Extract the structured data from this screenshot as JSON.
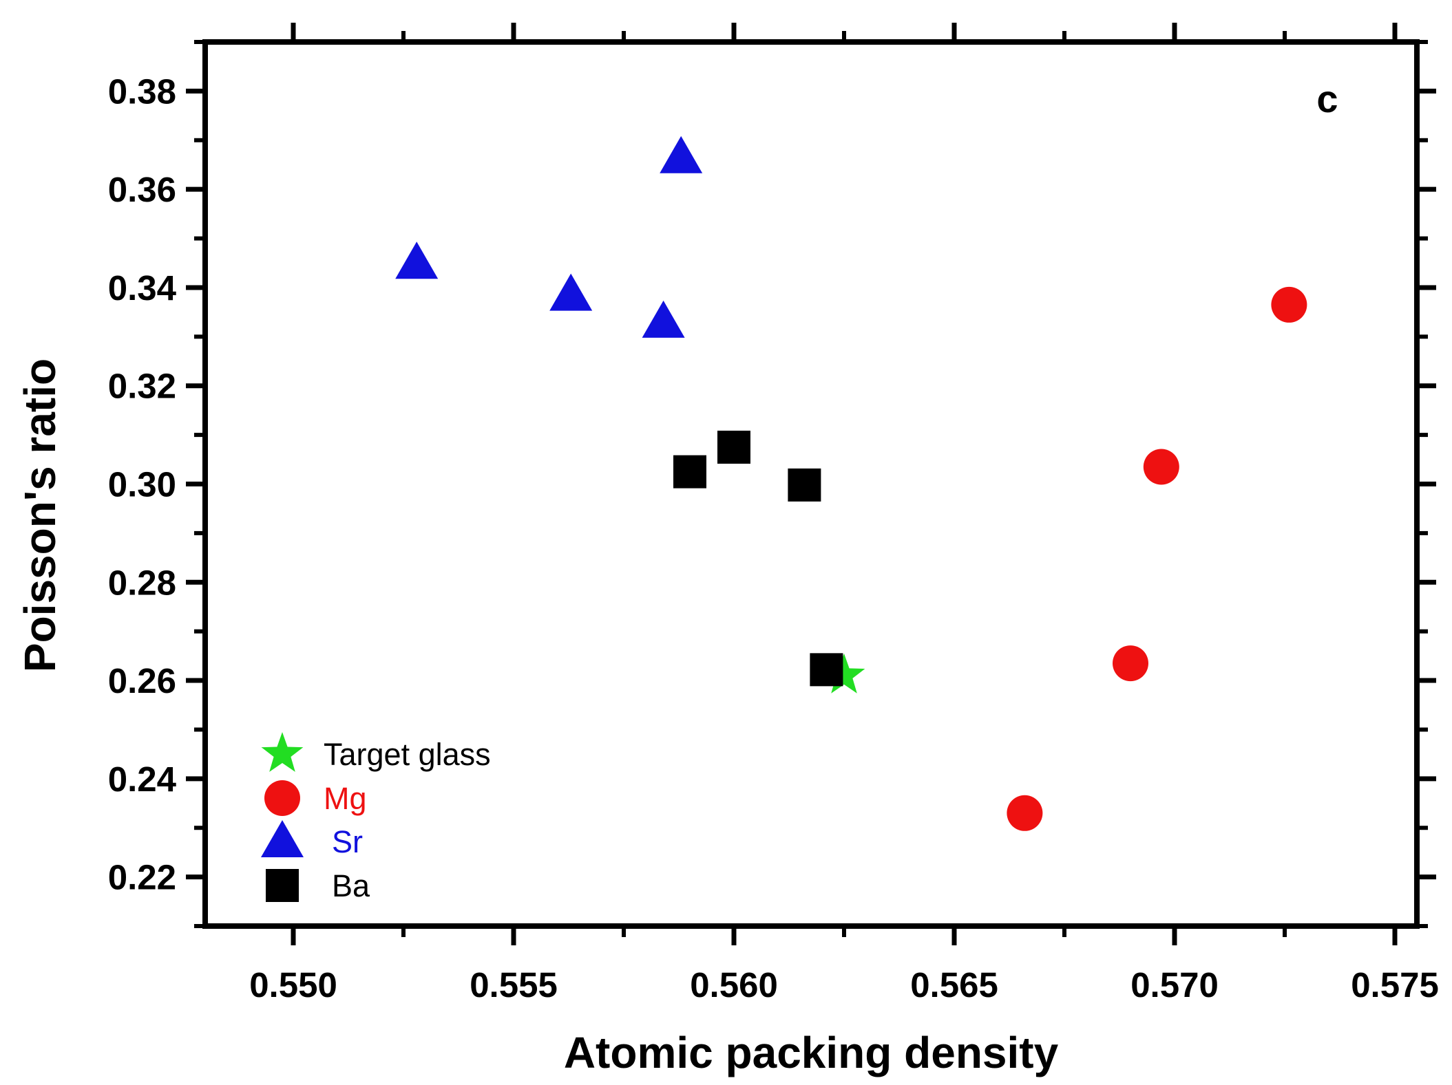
{
  "chart_data": {
    "type": "scatter",
    "title": "",
    "panel_label": "c",
    "xlabel": "Atomic packing density",
    "ylabel": "Poisson's ratio",
    "xlim": [
      0.548,
      0.5755
    ],
    "ylim": [
      0.21,
      0.39
    ],
    "x_ticks": [
      "0.550",
      "0.555",
      "0.560",
      "0.565",
      "0.570",
      "0.575"
    ],
    "y_ticks": [
      "0.22",
      "0.24",
      "0.26",
      "0.28",
      "0.30",
      "0.32",
      "0.34",
      "0.36",
      "0.38"
    ],
    "grid": false,
    "legend_position": "bottom-left",
    "series": [
      {
        "name": "Target glass",
        "marker": "star",
        "color": "#22dd22",
        "points": [
          {
            "x": 0.5625,
            "y": 0.261
          }
        ]
      },
      {
        "name": "Mg",
        "marker": "circle",
        "color": "#ee1111",
        "points": [
          {
            "x": 0.5726,
            "y": 0.3365
          },
          {
            "x": 0.5697,
            "y": 0.3035
          },
          {
            "x": 0.569,
            "y": 0.2635
          },
          {
            "x": 0.5666,
            "y": 0.233
          }
        ]
      },
      {
        "name": "Sr",
        "marker": "triangle",
        "color": "#1111dd",
        "points": [
          {
            "x": 0.5528,
            "y": 0.345
          },
          {
            "x": 0.5563,
            "y": 0.3385
          },
          {
            "x": 0.5588,
            "y": 0.3665
          },
          {
            "x": 0.5584,
            "y": 0.333
          }
        ]
      },
      {
        "name": "Ba",
        "marker": "square",
        "color": "#000000",
        "points": [
          {
            "x": 0.559,
            "y": 0.3025
          },
          {
            "x": 0.56,
            "y": 0.3075
          },
          {
            "x": 0.5616,
            "y": 0.2998
          },
          {
            "x": 0.5621,
            "y": 0.2622
          }
        ]
      }
    ]
  }
}
